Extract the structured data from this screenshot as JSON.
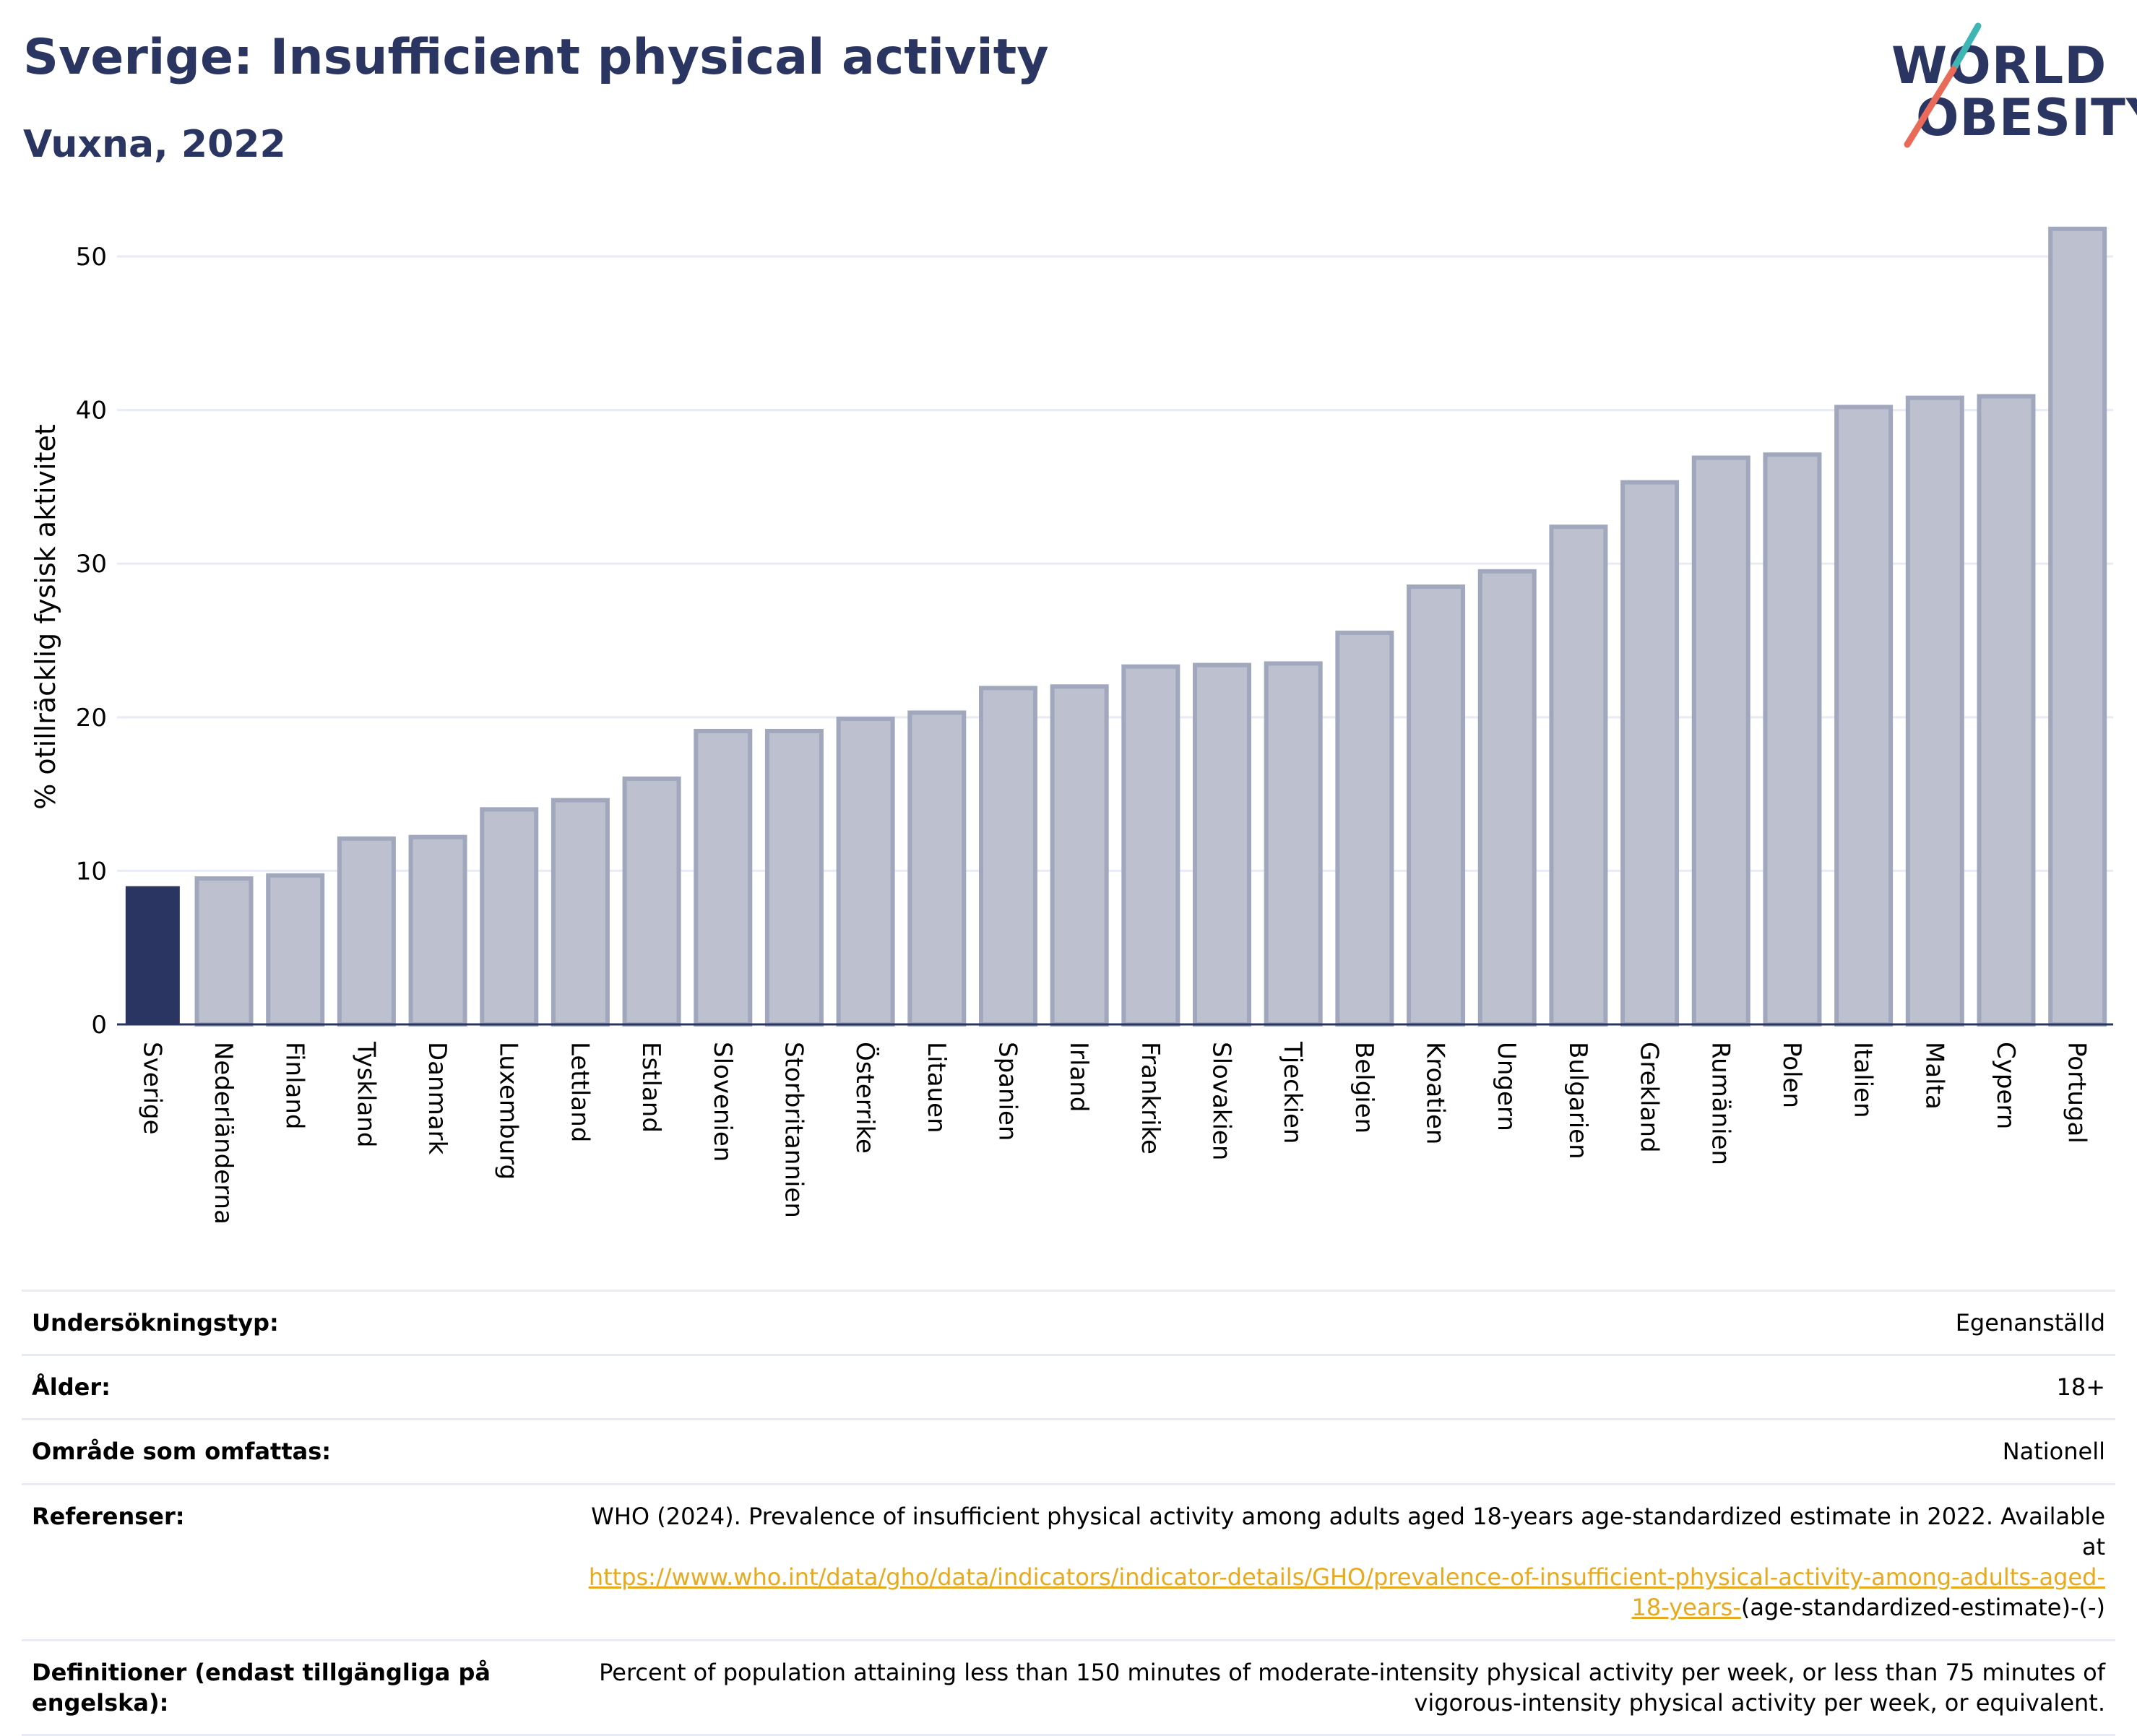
{
  "header": {
    "title": "Sverige: Insufficient physical activity",
    "subtitle": "Vuxna, 2022"
  },
  "logo": {
    "line1": "WORLD",
    "line2": "OBESITY"
  },
  "colors": {
    "title": "#2b3561",
    "highlight_bar": "#2b3561",
    "other_bars": "#bcc0cf",
    "other_bar_border": "#a1a7bd",
    "gridline": "#e8ebf3",
    "link": "#e7a91e",
    "logo_teal": "#3fb6b4",
    "logo_coral": "#ea6a5a"
  },
  "chart_data": {
    "type": "bar",
    "title": "Sverige: Insufficient physical activity",
    "subtitle": "Vuxna, 2022",
    "xlabel": "",
    "ylabel": "% otillräcklig fysisk aktivitet",
    "ylim": [
      0,
      54
    ],
    "yticks": [
      0,
      10,
      20,
      30,
      40,
      50
    ],
    "grid": true,
    "highlight": "Sverige",
    "categories": [
      "Sverige",
      "Nederländerna",
      "Finland",
      "Tyskland",
      "Danmark",
      "Luxemburg",
      "Lettland",
      "Estland",
      "Slovenien",
      "Storbritannien",
      "Österrike",
      "Litauen",
      "Spanien",
      "Irland",
      "Frankrike",
      "Slovakien",
      "Tjeckien",
      "Belgien",
      "Kroatien",
      "Ungern",
      "Bulgarien",
      "Grekland",
      "Rumänien",
      "Polen",
      "Italien",
      "Malta",
      "Cypern",
      "Portugal"
    ],
    "values": [
      9.0,
      9.5,
      9.7,
      12.1,
      12.2,
      14.0,
      14.6,
      16.0,
      19.1,
      19.1,
      19.9,
      20.3,
      21.9,
      22.0,
      23.3,
      23.4,
      23.5,
      25.5,
      28.5,
      29.5,
      32.4,
      35.3,
      36.9,
      37.1,
      40.2,
      40.8,
      40.9,
      51.8
    ]
  },
  "info": {
    "rows": [
      {
        "label": "Undersökningstyp:",
        "value": "Egenanställd"
      },
      {
        "label": "Ålder:",
        "value": "18+"
      },
      {
        "label": "Område som omfattas:",
        "value": "Nationell"
      }
    ],
    "references": {
      "label": "Referenser:",
      "text_before": "WHO (2024). Prevalence of insufficient physical activity among adults aged 18-years age-standardized estimate in 2022. Available at",
      "link": "https://www.who.int/data/gho/data/indicators/indicator-details/GHO/prevalence-of-insufficient-physical-activity-among-adults-aged-18-years-",
      "text_after": "(age-standardized-estimate)-(-)"
    },
    "definitions": {
      "label": "Definitioner (endast tillgängliga på engelska):",
      "value": "Percent of population attaining less than 150 minutes of moderate-intensity physical activity per week, or less than 75 minutes of vigorous-intensity physical activity per week, or equivalent."
    }
  }
}
